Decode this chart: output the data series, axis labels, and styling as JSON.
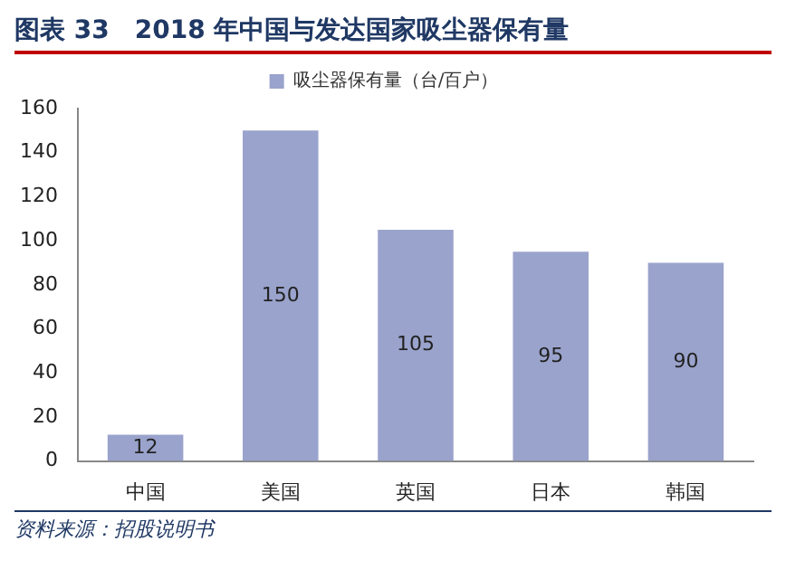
{
  "chart_data": {
    "type": "bar",
    "title": "图表 33　2018 年中国与发达国家吸尘器保有量",
    "categories": [
      "中国",
      "美国",
      "英国",
      "日本",
      "韩国"
    ],
    "series": [
      {
        "name": "吸尘器保有量（台/百户）",
        "color": "#9aa3cc",
        "values": [
          12,
          150,
          105,
          95,
          90
        ]
      }
    ],
    "ylim": [
      0,
      160
    ],
    "yticks": [
      0,
      20,
      40,
      60,
      80,
      100,
      120,
      140,
      160
    ],
    "grid": false,
    "legend": "top",
    "data_labels": true,
    "annotations": [
      "资料来源：招股说明书"
    ]
  }
}
